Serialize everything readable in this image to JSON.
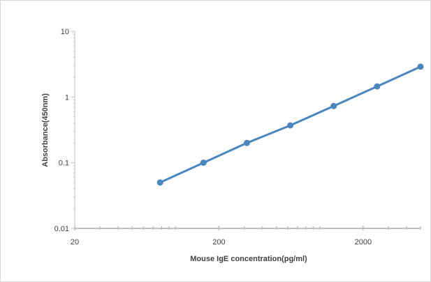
{
  "chart_data": {
    "type": "line",
    "title": "",
    "xlabel": "Mouse IgE concentration(pg/ml)",
    "ylabel": "Absorbance(450nm)",
    "x_scale": "log",
    "y_scale": "log",
    "xlim": [
      20,
      5000
    ],
    "ylim": [
      0.01,
      10
    ],
    "x_ticks": [
      20,
      200,
      2000
    ],
    "x_tick_labels": [
      "20",
      "200",
      "2000"
    ],
    "y_ticks": [
      0.01,
      0.1,
      1,
      10
    ],
    "y_tick_labels": [
      "0.01",
      "0.1",
      "1",
      "10"
    ],
    "grid": false,
    "legend": "none",
    "series": [
      {
        "color": "#4a86c0",
        "marker": "circle",
        "x": [
          78.125,
          156.25,
          312.5,
          625,
          1250,
          2500,
          5000
        ],
        "y": [
          0.05,
          0.1,
          0.2,
          0.37,
          0.73,
          1.45,
          2.9
        ]
      }
    ]
  }
}
